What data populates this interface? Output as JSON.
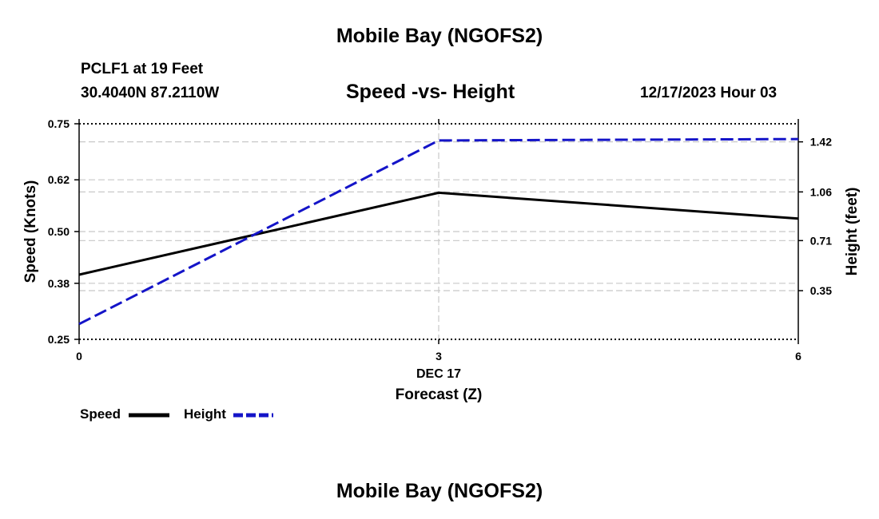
{
  "page": {
    "title_top": "Mobile Bay (NGOFS2)",
    "title_bottom": "Mobile Bay (NGOFS2)",
    "station_line": "PCLF1 at 19 Feet",
    "coords_line": "30.4040N  87.2110W",
    "subtitle": "Speed -vs- Height",
    "datetime": "12/17/2023 Hour 03"
  },
  "chart_data": {
    "type": "line",
    "title": "Speed -vs- Height",
    "xlabel": "Forecast (Z)",
    "ylabel_left": "Speed (Knots)",
    "ylabel_right": "Height (feet)",
    "x_ticks": [
      "0",
      "3",
      "6"
    ],
    "x_date_label": "DEC 17",
    "x": [
      0,
      3,
      6
    ],
    "xlim": [
      0,
      6
    ],
    "ylim_left": [
      0.25,
      0.75
    ],
    "y_ticks_left": [
      "0.25",
      "0.38",
      "0.50",
      "0.62",
      "0.75"
    ],
    "y_ticks_right": [
      "0.35",
      "0.71",
      "1.06",
      "1.42"
    ],
    "ylim_right": [
      0.0,
      1.55
    ],
    "grid": true,
    "legend_position": "bottom-left",
    "series": [
      {
        "name": "Speed",
        "axis": "left",
        "color": "#000000",
        "dash": "solid",
        "x": [
          0,
          3,
          6
        ],
        "values": [
          0.4,
          0.59,
          0.53
        ]
      },
      {
        "name": "Height",
        "axis": "right",
        "color": "#1414c8",
        "dash": "dashed",
        "x": [
          0,
          3,
          6
        ],
        "values": [
          0.11,
          1.43,
          1.44
        ]
      }
    ]
  }
}
